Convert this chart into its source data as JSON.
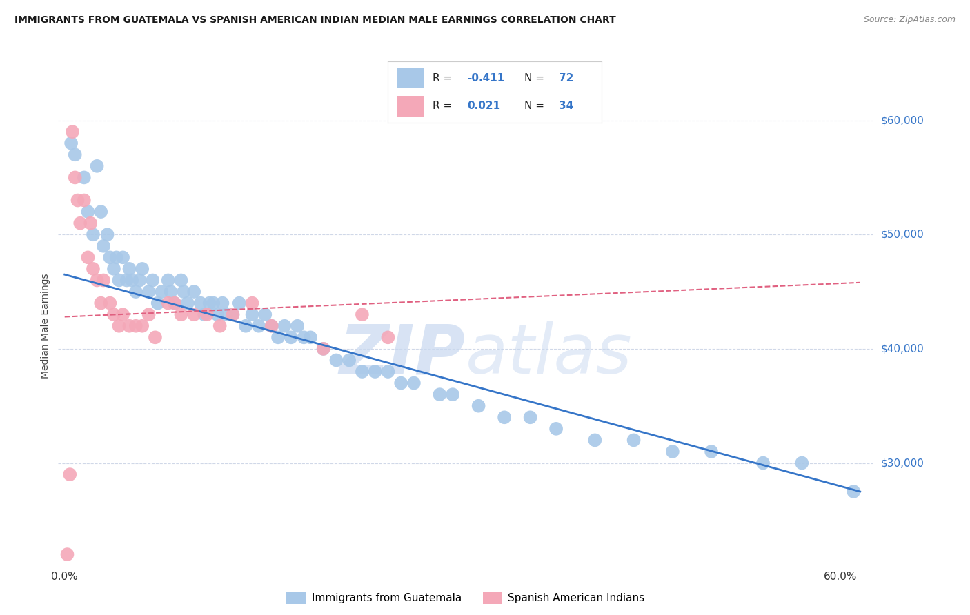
{
  "title": "IMMIGRANTS FROM GUATEMALA VS SPANISH AMERICAN INDIAN MEDIAN MALE EARNINGS CORRELATION CHART",
  "source": "Source: ZipAtlas.com",
  "ylabel": "Median Male Earnings",
  "ytick_labels": [
    "$60,000",
    "$50,000",
    "$40,000",
    "$30,000"
  ],
  "ytick_values": [
    60000,
    50000,
    40000,
    30000
  ],
  "ylim": [
    21000,
    63000
  ],
  "xlim": [
    -0.005,
    0.625
  ],
  "blue_color": "#A8C8E8",
  "pink_color": "#F4A8B8",
  "blue_line_color": "#3575C8",
  "pink_line_color": "#E06080",
  "background": "#FFFFFF",
  "watermark_zip": "ZIP",
  "watermark_atlas": "atlas",
  "grid_color": "#D0D8E8",
  "blue_scatter_x": [
    0.005,
    0.008,
    0.015,
    0.018,
    0.022,
    0.025,
    0.028,
    0.03,
    0.033,
    0.035,
    0.038,
    0.04,
    0.042,
    0.045,
    0.048,
    0.05,
    0.052,
    0.055,
    0.058,
    0.06,
    0.065,
    0.068,
    0.072,
    0.075,
    0.08,
    0.082,
    0.085,
    0.09,
    0.092,
    0.095,
    0.1,
    0.105,
    0.108,
    0.112,
    0.115,
    0.118,
    0.122,
    0.125,
    0.13,
    0.135,
    0.14,
    0.145,
    0.15,
    0.155,
    0.16,
    0.165,
    0.17,
    0.175,
    0.18,
    0.185,
    0.19,
    0.2,
    0.21,
    0.22,
    0.23,
    0.24,
    0.25,
    0.26,
    0.27,
    0.29,
    0.3,
    0.32,
    0.34,
    0.36,
    0.38,
    0.41,
    0.44,
    0.47,
    0.5,
    0.54,
    0.57,
    0.61
  ],
  "blue_scatter_y": [
    58000,
    57000,
    55000,
    52000,
    50000,
    56000,
    52000,
    49000,
    50000,
    48000,
    47000,
    48000,
    46000,
    48000,
    46000,
    47000,
    46000,
    45000,
    46000,
    47000,
    45000,
    46000,
    44000,
    45000,
    46000,
    45000,
    44000,
    46000,
    45000,
    44000,
    45000,
    44000,
    43000,
    44000,
    44000,
    43000,
    44000,
    43000,
    43000,
    44000,
    42000,
    43000,
    42000,
    43000,
    42000,
    41000,
    42000,
    41000,
    42000,
    41000,
    41000,
    40000,
    39000,
    39000,
    38000,
    38000,
    38000,
    37000,
    37000,
    36000,
    36000,
    35000,
    34000,
    34000,
    33000,
    32000,
    32000,
    31000,
    31000,
    30000,
    30000,
    27500
  ],
  "pink_scatter_x": [
    0.002,
    0.004,
    0.006,
    0.008,
    0.01,
    0.012,
    0.015,
    0.018,
    0.02,
    0.022,
    0.025,
    0.028,
    0.03,
    0.035,
    0.038,
    0.042,
    0.045,
    0.05,
    0.055,
    0.06,
    0.065,
    0.07,
    0.08,
    0.085,
    0.09,
    0.1,
    0.11,
    0.12,
    0.13,
    0.145,
    0.16,
    0.2,
    0.23,
    0.25
  ],
  "pink_scatter_y": [
    22000,
    29000,
    59000,
    55000,
    53000,
    51000,
    53000,
    48000,
    51000,
    47000,
    46000,
    44000,
    46000,
    44000,
    43000,
    42000,
    43000,
    42000,
    42000,
    42000,
    43000,
    41000,
    44000,
    44000,
    43000,
    43000,
    43000,
    42000,
    43000,
    44000,
    42000,
    40000,
    43000,
    41000
  ],
  "blue_line_x0": 0.0,
  "blue_line_x1": 0.615,
  "blue_line_y0": 46500,
  "blue_line_y1": 27500,
  "pink_line_x0": 0.0,
  "pink_line_x1": 0.615,
  "pink_line_y0": 42800,
  "pink_line_y1": 45800
}
